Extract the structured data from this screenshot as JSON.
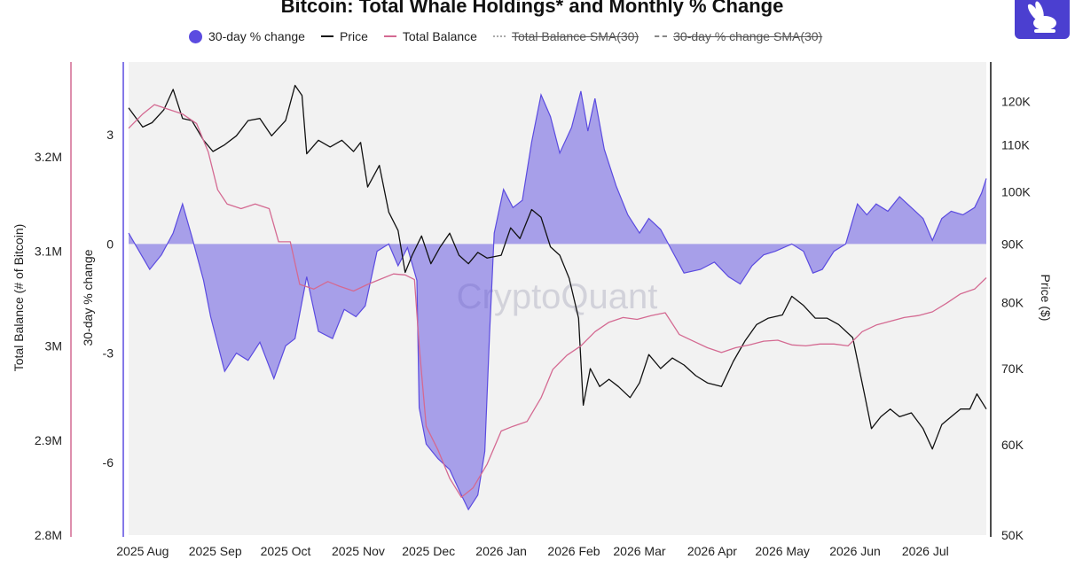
{
  "title": "Bitcoin: Total Whale Holdings* and Monthly % Change",
  "watermark": "CryptoQuant",
  "footnote": "",
  "legend": [
    {
      "label": "30-day % change",
      "marker": "dot",
      "color": "#5b4be0"
    },
    {
      "label": "Price",
      "marker": "line",
      "color": "#111111"
    },
    {
      "label": "Total Balance",
      "marker": "line",
      "color": "#d46a92"
    },
    {
      "label": "Total Balance SMA(30)",
      "marker": "dotted-line",
      "color": "#aaaaaa",
      "hidden": true
    },
    {
      "label": "30-day % change SMA(30)",
      "marker": "dashed-line",
      "color": "#888888",
      "hidden": true
    }
  ],
  "chart_data": {
    "type": "line",
    "x_ticks": [
      "2025 Aug",
      "2025 Sep",
      "2025 Oct",
      "2025 Nov",
      "2025 Dec",
      "2026 Jan",
      "2026 Feb",
      "2026 Mar",
      "2026 Apr",
      "2026 May",
      "2026 Jun",
      "2026 Jul"
    ],
    "x_range": [
      "2025-07-26",
      "2026-07-27"
    ],
    "grid": false,
    "legend_position": "top",
    "axes": {
      "balance": {
        "title": "Total Balance (# of Bitcoin)",
        "range": [
          2800000,
          3300000
        ],
        "ticks": [
          {
            "v": 3200000,
            "label": "3.2M"
          },
          {
            "v": 3100000,
            "label": "3.1M"
          },
          {
            "v": 3000000,
            "label": "3M"
          },
          {
            "v": 2900000,
            "label": "2.9M"
          },
          {
            "v": 2800000,
            "label": "2.8M"
          }
        ],
        "color": "#d46a92"
      },
      "change": {
        "title": "30-day % change",
        "range": [
          -8,
          5
        ],
        "ticks": [
          {
            "v": 3,
            "label": "3"
          },
          {
            "v": 0,
            "label": "0"
          },
          {
            "v": -3,
            "label": "-3"
          },
          {
            "v": -6,
            "label": "-6"
          }
        ],
        "color": "#5b4be0"
      },
      "price": {
        "title": "Price ($)",
        "scale": "log",
        "range": [
          50000,
          130000
        ],
        "ticks": [
          {
            "v": 120000,
            "label": "120K"
          },
          {
            "v": 110000,
            "label": "110K"
          },
          {
            "v": 100000,
            "label": "100K"
          },
          {
            "v": 90000,
            "label": "90K"
          },
          {
            "v": 80000,
            "label": "80K"
          },
          {
            "v": 70000,
            "label": "70K"
          },
          {
            "v": 60000,
            "label": "60K"
          },
          {
            "v": 50000,
            "label": "50K"
          }
        ],
        "color": "#111111"
      }
    },
    "series": [
      {
        "name": "30-day % change",
        "axis": "change",
        "style": "area",
        "color": "#5b4be0",
        "points": [
          [
            "2025-07-26",
            0.3
          ],
          [
            "2025-08-04",
            -0.7
          ],
          [
            "2025-08-09",
            -0.3
          ],
          [
            "2025-08-14",
            0.3
          ],
          [
            "2025-08-18",
            1.1
          ],
          [
            "2025-08-22",
            0.2
          ],
          [
            "2025-08-27",
            -1.0
          ],
          [
            "2025-08-30",
            -2.0
          ],
          [
            "2025-09-05",
            -3.5
          ],
          [
            "2025-09-10",
            -3.0
          ],
          [
            "2025-09-15",
            -3.2
          ],
          [
            "2025-09-20",
            -2.7
          ],
          [
            "2025-09-26",
            -3.7
          ],
          [
            "2025-10-01",
            -2.8
          ],
          [
            "2025-10-05",
            -2.6
          ],
          [
            "2025-10-10",
            -0.9
          ],
          [
            "2025-10-15",
            -2.4
          ],
          [
            "2025-10-21",
            -2.6
          ],
          [
            "2025-10-26",
            -1.8
          ],
          [
            "2025-10-31",
            -2.0
          ],
          [
            "2025-11-04",
            -1.7
          ],
          [
            "2025-11-09",
            -0.2
          ],
          [
            "2025-11-14",
            0.0
          ],
          [
            "2025-11-18",
            -0.6
          ],
          [
            "2025-11-22",
            -0.1
          ],
          [
            "2025-11-26",
            -1.0
          ],
          [
            "2025-11-27",
            -4.5
          ],
          [
            "2025-11-30",
            -5.5
          ],
          [
            "2025-12-05",
            -5.9
          ],
          [
            "2025-12-10",
            -6.2
          ],
          [
            "2025-12-15",
            -6.9
          ],
          [
            "2025-12-18",
            -7.3
          ],
          [
            "2025-12-22",
            -6.9
          ],
          [
            "2025-12-25",
            -5.7
          ],
          [
            "2025-12-27",
            -2.5
          ],
          [
            "2025-12-29",
            0.3
          ],
          [
            "2026-01-02",
            1.5
          ],
          [
            "2026-01-06",
            1.0
          ],
          [
            "2026-01-10",
            1.2
          ],
          [
            "2026-01-14",
            2.8
          ],
          [
            "2026-01-18",
            4.1
          ],
          [
            "2026-01-22",
            3.5
          ],
          [
            "2026-01-26",
            2.5
          ],
          [
            "2026-01-31",
            3.2
          ],
          [
            "2026-02-04",
            4.2
          ],
          [
            "2026-02-07",
            3.1
          ],
          [
            "2026-02-10",
            4.0
          ],
          [
            "2026-02-14",
            2.6
          ],
          [
            "2026-02-19",
            1.6
          ],
          [
            "2026-02-24",
            0.8
          ],
          [
            "2026-03-01",
            0.3
          ],
          [
            "2026-03-05",
            0.7
          ],
          [
            "2026-03-10",
            0.4
          ],
          [
            "2026-03-15",
            -0.2
          ],
          [
            "2026-03-20",
            -0.8
          ],
          [
            "2026-03-27",
            -0.7
          ],
          [
            "2026-04-02",
            -0.5
          ],
          [
            "2026-04-08",
            -0.9
          ],
          [
            "2026-04-13",
            -1.1
          ],
          [
            "2026-04-18",
            -0.6
          ],
          [
            "2026-04-23",
            -0.3
          ],
          [
            "2026-04-28",
            -0.2
          ],
          [
            "2026-05-05",
            0.0
          ],
          [
            "2026-05-10",
            -0.2
          ],
          [
            "2026-05-14",
            -0.8
          ],
          [
            "2026-05-18",
            -0.7
          ],
          [
            "2026-05-23",
            -0.2
          ],
          [
            "2026-05-28",
            0.0
          ],
          [
            "2026-06-02",
            1.1
          ],
          [
            "2026-06-06",
            0.8
          ],
          [
            "2026-06-10",
            1.1
          ],
          [
            "2026-06-15",
            0.9
          ],
          [
            "2026-06-20",
            1.3
          ],
          [
            "2026-06-25",
            1.0
          ],
          [
            "2026-06-30",
            0.7
          ],
          [
            "2026-07-04",
            0.1
          ],
          [
            "2026-07-08",
            0.7
          ],
          [
            "2026-07-12",
            0.9
          ],
          [
            "2026-07-17",
            0.8
          ],
          [
            "2026-07-22",
            1.0
          ],
          [
            "2026-07-25",
            1.4
          ],
          [
            "2026-07-27",
            1.8
          ]
        ]
      },
      {
        "name": "Price",
        "axis": "price",
        "style": "line",
        "color": "#111111",
        "points": [
          [
            "2025-07-26",
            118500
          ],
          [
            "2025-08-01",
            114000
          ],
          [
            "2025-08-05",
            115000
          ],
          [
            "2025-08-10",
            118000
          ],
          [
            "2025-08-14",
            123000
          ],
          [
            "2025-08-18",
            116000
          ],
          [
            "2025-08-22",
            115500
          ],
          [
            "2025-08-27",
            111000
          ],
          [
            "2025-08-31",
            108500
          ],
          [
            "2025-09-05",
            110000
          ],
          [
            "2025-09-10",
            112000
          ],
          [
            "2025-09-15",
            115500
          ],
          [
            "2025-09-20",
            116000
          ],
          [
            "2025-09-25",
            112000
          ],
          [
            "2025-10-01",
            115500
          ],
          [
            "2025-10-05",
            124000
          ],
          [
            "2025-10-08",
            121500
          ],
          [
            "2025-10-10",
            108000
          ],
          [
            "2025-10-15",
            111000
          ],
          [
            "2025-10-20",
            109500
          ],
          [
            "2025-10-25",
            111000
          ],
          [
            "2025-10-30",
            108500
          ],
          [
            "2025-11-02",
            110500
          ],
          [
            "2025-11-05",
            101000
          ],
          [
            "2025-11-10",
            105500
          ],
          [
            "2025-11-14",
            96000
          ],
          [
            "2025-11-18",
            92500
          ],
          [
            "2025-11-21",
            85000
          ],
          [
            "2025-11-24",
            88000
          ],
          [
            "2025-11-28",
            91500
          ],
          [
            "2025-12-02",
            86500
          ],
          [
            "2025-12-06",
            89500
          ],
          [
            "2025-12-10",
            92000
          ],
          [
            "2025-12-14",
            88000
          ],
          [
            "2025-12-18",
            86500
          ],
          [
            "2025-12-22",
            88500
          ],
          [
            "2025-12-26",
            87500
          ],
          [
            "2026-01-01",
            88000
          ],
          [
            "2026-01-05",
            93000
          ],
          [
            "2026-01-09",
            91000
          ],
          [
            "2026-01-14",
            96500
          ],
          [
            "2026-01-18",
            95000
          ],
          [
            "2026-01-22",
            89500
          ],
          [
            "2026-01-26",
            88000
          ],
          [
            "2026-01-30",
            84000
          ],
          [
            "2026-02-03",
            77500
          ],
          [
            "2026-02-05",
            65000
          ],
          [
            "2026-02-08",
            70000
          ],
          [
            "2026-02-12",
            67500
          ],
          [
            "2026-02-16",
            68500
          ],
          [
            "2026-02-20",
            67500
          ],
          [
            "2026-02-25",
            66000
          ],
          [
            "2026-03-01",
            68000
          ],
          [
            "2026-03-05",
            72000
          ],
          [
            "2026-03-10",
            70000
          ],
          [
            "2026-03-15",
            71500
          ],
          [
            "2026-03-20",
            70500
          ],
          [
            "2026-03-25",
            69000
          ],
          [
            "2026-03-30",
            68000
          ],
          [
            "2026-04-05",
            67500
          ],
          [
            "2026-04-10",
            71000
          ],
          [
            "2026-04-15",
            74000
          ],
          [
            "2026-04-20",
            76500
          ],
          [
            "2026-04-25",
            77500
          ],
          [
            "2026-05-01",
            78000
          ],
          [
            "2026-05-05",
            81000
          ],
          [
            "2026-05-10",
            79500
          ],
          [
            "2026-05-15",
            77500
          ],
          [
            "2026-05-20",
            77500
          ],
          [
            "2026-05-25",
            76500
          ],
          [
            "2026-05-31",
            74500
          ],
          [
            "2026-06-05",
            66500
          ],
          [
            "2026-06-08",
            62000
          ],
          [
            "2026-06-12",
            63500
          ],
          [
            "2026-06-16",
            64500
          ],
          [
            "2026-06-20",
            63500
          ],
          [
            "2026-06-25",
            64000
          ],
          [
            "2026-06-30",
            62000
          ],
          [
            "2026-07-04",
            59500
          ],
          [
            "2026-07-08",
            62500
          ],
          [
            "2026-07-12",
            63500
          ],
          [
            "2026-07-16",
            64500
          ],
          [
            "2026-07-20",
            64500
          ],
          [
            "2026-07-23",
            66500
          ],
          [
            "2026-07-27",
            64500
          ]
        ]
      },
      {
        "name": "Total Balance",
        "axis": "balance",
        "style": "line",
        "color": "#d46a92",
        "points": [
          [
            "2025-07-26",
            3230000
          ],
          [
            "2025-08-01",
            3245000
          ],
          [
            "2025-08-06",
            3255000
          ],
          [
            "2025-08-12",
            3250000
          ],
          [
            "2025-08-18",
            3245000
          ],
          [
            "2025-08-24",
            3235000
          ],
          [
            "2025-08-29",
            3205000
          ],
          [
            "2025-09-02",
            3165000
          ],
          [
            "2025-09-06",
            3150000
          ],
          [
            "2025-09-12",
            3145000
          ],
          [
            "2025-09-18",
            3150000
          ],
          [
            "2025-09-24",
            3145000
          ],
          [
            "2025-09-28",
            3110000
          ],
          [
            "2025-10-03",
            3110000
          ],
          [
            "2025-10-07",
            3065000
          ],
          [
            "2025-10-13",
            3060000
          ],
          [
            "2025-10-19",
            3068000
          ],
          [
            "2025-10-24",
            3063000
          ],
          [
            "2025-10-30",
            3058000
          ],
          [
            "2025-11-05",
            3065000
          ],
          [
            "2025-11-10",
            3070000
          ],
          [
            "2025-11-16",
            3076000
          ],
          [
            "2025-11-21",
            3075000
          ],
          [
            "2025-11-25",
            3070000
          ],
          [
            "2025-11-27",
            3000000
          ],
          [
            "2025-11-30",
            2915000
          ],
          [
            "2025-12-05",
            2890000
          ],
          [
            "2025-12-10",
            2860000
          ],
          [
            "2025-12-15",
            2840000
          ],
          [
            "2025-12-20",
            2850000
          ],
          [
            "2025-12-26",
            2875000
          ],
          [
            "2026-01-01",
            2910000
          ],
          [
            "2026-01-06",
            2915000
          ],
          [
            "2026-01-12",
            2920000
          ],
          [
            "2026-01-18",
            2945000
          ],
          [
            "2026-01-23",
            2975000
          ],
          [
            "2026-01-29",
            2990000
          ],
          [
            "2026-02-04",
            3000000
          ],
          [
            "2026-02-10",
            3015000
          ],
          [
            "2026-02-16",
            3025000
          ],
          [
            "2026-02-22",
            3030000
          ],
          [
            "2026-02-28",
            3028000
          ],
          [
            "2026-03-06",
            3032000
          ],
          [
            "2026-03-12",
            3035000
          ],
          [
            "2026-03-18",
            3012000
          ],
          [
            "2026-03-24",
            3005000
          ],
          [
            "2026-03-30",
            2998000
          ],
          [
            "2026-04-05",
            2993000
          ],
          [
            "2026-04-11",
            2998000
          ],
          [
            "2026-04-17",
            3001000
          ],
          [
            "2026-04-23",
            3005000
          ],
          [
            "2026-04-29",
            3006000
          ],
          [
            "2026-05-05",
            3001000
          ],
          [
            "2026-05-11",
            3000000
          ],
          [
            "2026-05-17",
            3002000
          ],
          [
            "2026-05-23",
            3002000
          ],
          [
            "2026-05-29",
            3000000
          ],
          [
            "2026-06-04",
            3015000
          ],
          [
            "2026-06-10",
            3022000
          ],
          [
            "2026-06-16",
            3026000
          ],
          [
            "2026-06-22",
            3030000
          ],
          [
            "2026-06-28",
            3032000
          ],
          [
            "2026-07-04",
            3036000
          ],
          [
            "2026-07-10",
            3045000
          ],
          [
            "2026-07-16",
            3055000
          ],
          [
            "2026-07-22",
            3060000
          ],
          [
            "2026-07-27",
            3072000
          ]
        ]
      }
    ]
  }
}
